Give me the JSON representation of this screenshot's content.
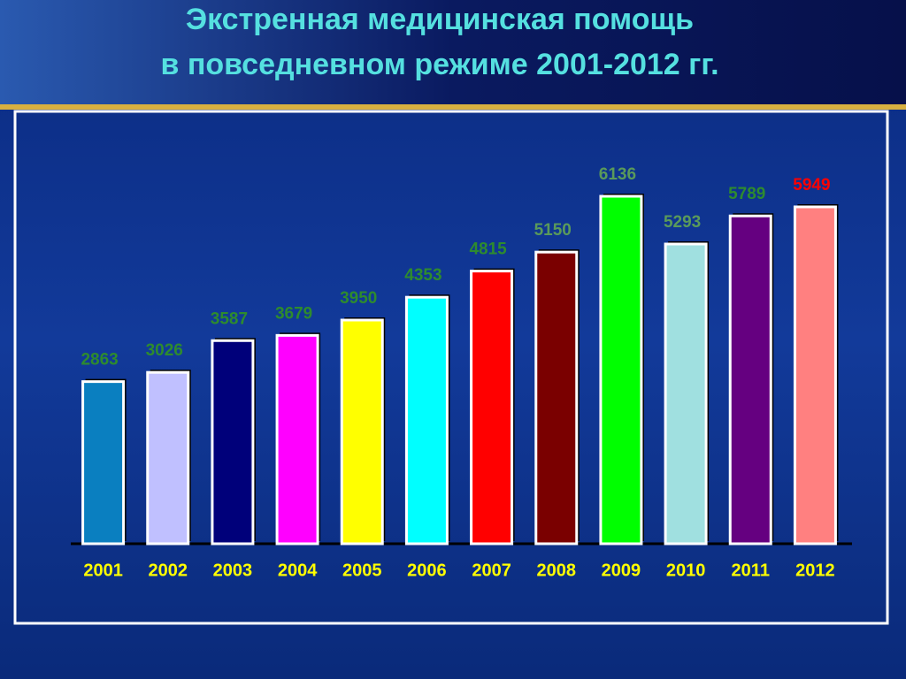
{
  "chart_data": {
    "type": "bar",
    "title": [
      "Экстренная медицинская помощь",
      "в повседневном режиме 2001-2012 гг."
    ],
    "categories": [
      "2001",
      "2002",
      "2003",
      "2004",
      "2005",
      "2006",
      "2007",
      "2008",
      "2009",
      "2010",
      "2011",
      "2012"
    ],
    "values": [
      2863,
      3026,
      3587,
      3679,
      3950,
      4353,
      4815,
      5150,
      6136,
      5293,
      5789,
      5949
    ],
    "colors": [
      "#0a7fc0",
      "#c0c0ff",
      "#00007a",
      "#ff00ff",
      "#ffff00",
      "#00ffff",
      "#ff0000",
      "#7a0000",
      "#00ff00",
      "#a0e0e0",
      "#650080",
      "#ff8080"
    ],
    "value_label_colors": [
      "#2e8b2e",
      "#2e8b2e",
      "#2e8b2e",
      "#2e8b2e",
      "#2e8b2e",
      "#2e8b2e",
      "#2e8b2e",
      "#5a9a5a",
      "#5a9a5a",
      "#5a9a5a",
      "#2e8b2e",
      "#ff0000"
    ]
  }
}
